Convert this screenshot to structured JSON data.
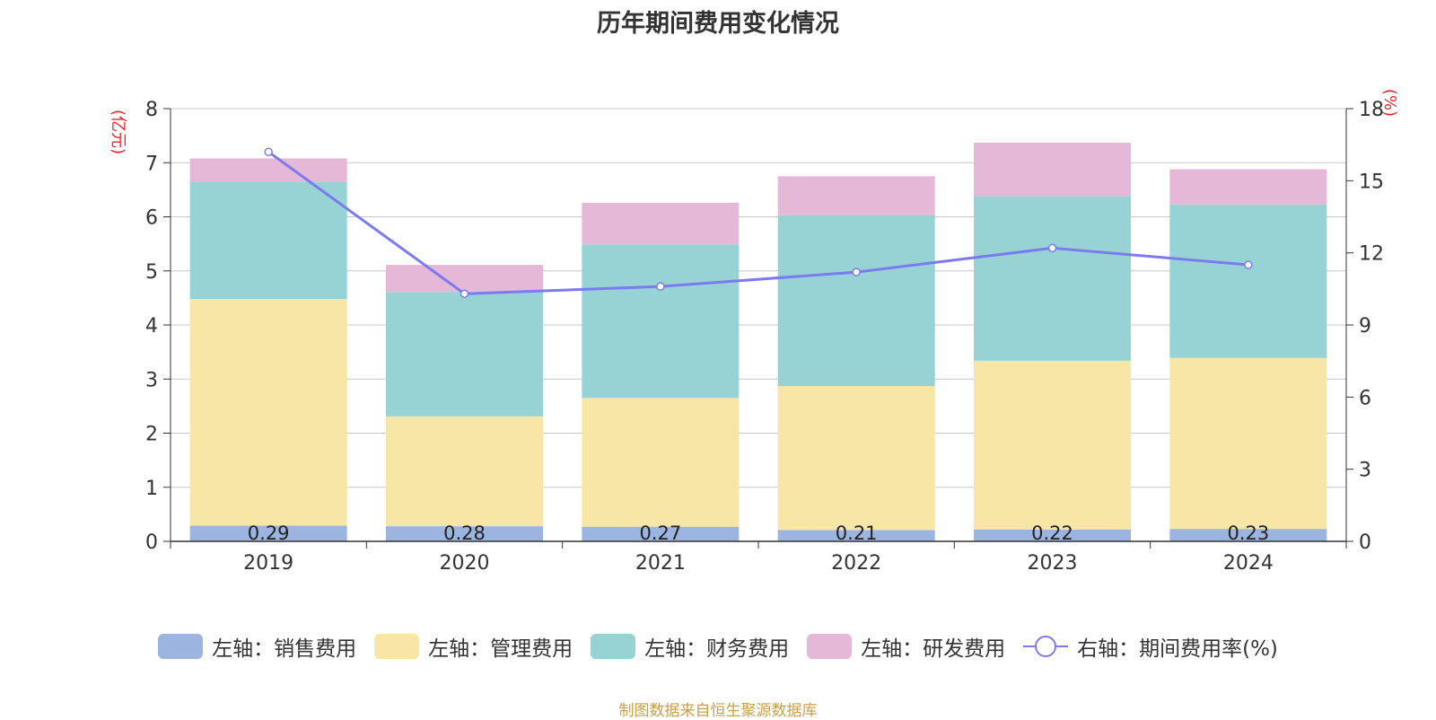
{
  "title": "历年期间费用变化情况",
  "source": "制图数据来自恒生聚源数据库",
  "chart_data": {
    "type": "bar",
    "stacked": true,
    "title": "历年期间费用变化情况",
    "categories": [
      "2019",
      "2020",
      "2021",
      "2022",
      "2023",
      "2024"
    ],
    "left_axis": {
      "unit": "(亿元)",
      "ylim": [
        0,
        8
      ],
      "ticks": [
        0,
        1,
        2,
        3,
        4,
        5,
        6,
        7,
        8
      ]
    },
    "right_axis": {
      "unit": "(%)",
      "ylim": [
        0,
        18
      ],
      "ticks": [
        0,
        3,
        6,
        9,
        12,
        15,
        18
      ]
    },
    "series": [
      {
        "name": "左轴：销售费用",
        "type": "bar",
        "axis": "left",
        "color": "#9cb5e0",
        "values": [
          0.29,
          0.28,
          0.27,
          0.21,
          0.22,
          0.23
        ],
        "labels": [
          "0.29",
          "0.28",
          "0.27",
          "0.21",
          "0.22",
          "0.23"
        ]
      },
      {
        "name": "左轴：管理费用",
        "type": "bar",
        "axis": "left",
        "color": "#f7e6a6",
        "values": [
          4.19,
          2.03,
          2.38,
          2.66,
          3.12,
          3.16
        ]
      },
      {
        "name": "左轴：财务费用",
        "type": "bar",
        "axis": "left",
        "color": "#97d3d4",
        "values": [
          2.17,
          2.3,
          2.84,
          3.16,
          3.04,
          2.84
        ]
      },
      {
        "name": "左轴：研发费用",
        "type": "bar",
        "axis": "left",
        "color": "#e6b8d8",
        "values": [
          0.43,
          0.5,
          0.77,
          0.72,
          0.99,
          0.65
        ]
      },
      {
        "name": "右轴：期间费用率(%)",
        "type": "line",
        "axis": "right",
        "color": "#7b7bef",
        "values": [
          16.2,
          10.3,
          10.6,
          11.2,
          12.2,
          11.5
        ]
      }
    ],
    "legend_position": "bottom",
    "grid": true
  }
}
